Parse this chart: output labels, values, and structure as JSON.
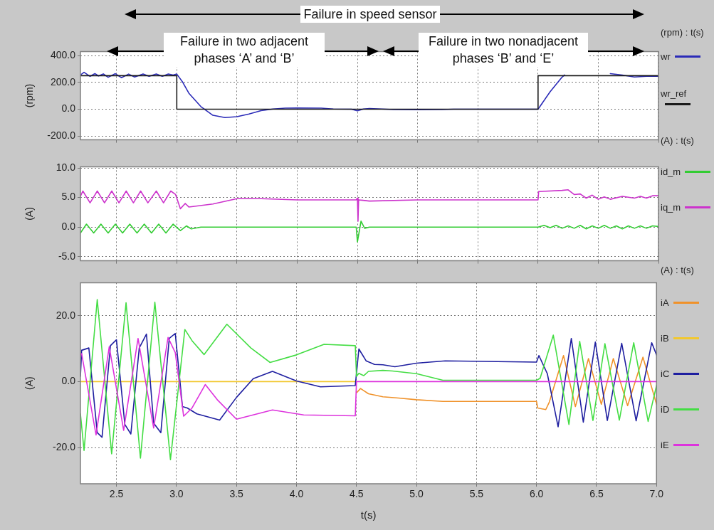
{
  "chart_data": [
    {
      "type": "line",
      "annotations": [
        "Failure in speed sensor",
        "Failure in two adjacent phases  ‘A’ and ‘B’",
        "Failure in two nonadjacent phases ‘B’ and ‘E’"
      ],
      "ylabel": "(rpm)",
      "legend": "right",
      "legend_title": "(rpm) : t(s)",
      "grid": true,
      "marker": "none",
      "tick_labels": "y",
      "xlim": [
        2.2,
        7.0
      ],
      "xticks": [
        2.5,
        3,
        3.5,
        4,
        4.5,
        5,
        5.5,
        6,
        6.5,
        7
      ],
      "ylim": [
        -228,
        430
      ],
      "yticks": [
        {
          "value": -200,
          "label": "-200.0"
        },
        {
          "value": 0,
          "label": "0.0"
        },
        {
          "value": 200,
          "label": "200.0"
        },
        {
          "value": 400,
          "label": "400.0"
        }
      ],
      "series": [
        {
          "name": "wr",
          "color": "#2b2bb8",
          "x": [
            2.2,
            2.23,
            2.28,
            2.32,
            2.35,
            2.39,
            2.43,
            2.49,
            2.54,
            2.6,
            2.65,
            2.72,
            2.77,
            2.83,
            2.88,
            2.93,
            2.97,
            3.0,
            3.05,
            3.1,
            3.2,
            3.3,
            3.4,
            3.5,
            3.6,
            3.7,
            3.8,
            3.9,
            4.0,
            4.2,
            4.3,
            4.45,
            4.5,
            4.55,
            4.6,
            4.7,
            4.8,
            5.0,
            5.2,
            5.3,
            6.0,
            6.1,
            6.2,
            6.22,
            6.4,
            6.6,
            6.7,
            6.8,
            6.9,
            7.0
          ],
          "values": [
            255,
            275,
            245,
            265,
            248,
            263,
            238,
            265,
            235,
            262,
            240,
            262,
            245,
            262,
            245,
            262,
            255,
            262,
            200,
            120,
            20,
            -45,
            -62,
            -55,
            -35,
            -10,
            2,
            8,
            10,
            8,
            2,
            0,
            -12,
            2,
            5,
            2,
            -2,
            -3,
            -2,
            0,
            0,
            130,
            240,
            255,
            null,
            265,
            255,
            240,
            245,
            245
          ]
        },
        {
          "name": "wr_ref",
          "color": "#1a1a1a",
          "x": [
            2.2,
            3.0,
            3.0,
            6.0,
            6.0,
            7.0
          ],
          "values": [
            250,
            250,
            0,
            0,
            250,
            250
          ]
        }
      ]
    },
    {
      "type": "line",
      "ylabel": "(A)",
      "legend": "right",
      "legend_title": "(A) : t(s)",
      "grid": true,
      "marker": "none",
      "tick_labels": "y",
      "xlim": [
        2.2,
        7.0
      ],
      "xticks": [
        2.5,
        3,
        3.5,
        4,
        4.5,
        5,
        5.5,
        6,
        6.5,
        7
      ],
      "ylim": [
        -5.7,
        10.2
      ],
      "yticks": [
        {
          "value": -5,
          "label": "-5.0"
        },
        {
          "value": 0,
          "label": "0.0"
        },
        {
          "value": 5,
          "label": "5.0"
        },
        {
          "value": 10,
          "label": "10.0"
        }
      ],
      "series": [
        {
          "name": "id_m",
          "color": "#33cc33",
          "x": [
            2.2,
            2.25,
            2.31,
            2.37,
            2.43,
            2.49,
            2.55,
            2.61,
            2.67,
            2.73,
            2.79,
            2.85,
            2.91,
            2.97,
            3.03,
            3.08,
            3.12,
            3.2,
            4.49,
            4.5,
            4.53,
            4.56,
            4.6,
            6.0,
            6.05,
            6.1,
            6.15,
            6.2,
            6.25,
            6.3,
            6.35,
            6.4,
            6.45,
            6.5,
            6.55,
            6.6,
            6.65,
            6.7,
            6.75,
            6.8,
            6.85,
            6.9,
            6.95,
            7.0
          ],
          "values": [
            -1.0,
            0.5,
            -1.0,
            0.5,
            -1.0,
            0.5,
            -1.0,
            0.5,
            -1.0,
            0.5,
            -1.0,
            0.5,
            -1.0,
            0.5,
            -0.6,
            0.2,
            -0.3,
            0,
            0,
            -2.5,
            1.0,
            -0.2,
            0,
            0,
            0.3,
            -0.1,
            0.3,
            -0.2,
            0.2,
            -0.2,
            0.3,
            -0.3,
            0.2,
            -0.2,
            0.3,
            -0.2,
            0.2,
            -0.3,
            0.2,
            -0.2,
            0.2,
            -0.2,
            0.2,
            0.1
          ]
        },
        {
          "name": "iq_m",
          "color": "#cc33cc",
          "x": [
            2.2,
            2.22,
            2.28,
            2.34,
            2.4,
            2.46,
            2.52,
            2.58,
            2.64,
            2.7,
            2.76,
            2.83,
            2.89,
            2.95,
            2.99,
            3.03,
            3.07,
            3.1,
            3.3,
            3.5,
            3.7,
            4.0,
            4.49,
            4.5,
            4.505,
            4.51,
            4.6,
            5.0,
            6.0,
            6.005,
            6.2,
            6.25,
            6.3,
            6.35,
            6.4,
            6.45,
            6.5,
            6.55,
            6.6,
            6.7,
            6.8,
            6.85,
            6.9,
            6.95,
            7.0
          ],
          "values": [
            5.2,
            6.1,
            4.1,
            6.1,
            4.1,
            6.1,
            4.1,
            6.1,
            4.1,
            6.1,
            4.1,
            6.1,
            4.1,
            6.1,
            5.5,
            3.1,
            4.0,
            3.4,
            3.9,
            4.8,
            4.8,
            4.6,
            4.6,
            4.9,
            1.0,
            4.6,
            4.4,
            4.6,
            4.6,
            6.0,
            6.2,
            6.3,
            5.5,
            5.6,
            4.9,
            5.4,
            4.7,
            5.1,
            4.7,
            5.2,
            4.9,
            5.2,
            4.9,
            5.3,
            5.3
          ]
        }
      ]
    },
    {
      "type": "line",
      "ylabel": "(A)",
      "xlabel": "t(s)",
      "legend": "right",
      "legend_title": "(A) : t(s)",
      "grid": true,
      "marker": "none",
      "xlim": [
        2.2,
        7.0
      ],
      "xticks": [
        2.5,
        {
          "value": 3,
          "label": "3.0"
        },
        3.5,
        {
          "value": 4,
          "label": "4.0"
        },
        4.5,
        {
          "value": 5,
          "label": "5.0"
        },
        5.5,
        {
          "value": 6,
          "label": "6.0"
        },
        6.5,
        {
          "value": 7,
          "label": "7.0"
        }
      ],
      "ylim": [
        -31,
        30
      ],
      "yticks": [
        {
          "value": -20,
          "label": "-20.0"
        },
        {
          "value": 0,
          "label": "0.0"
        },
        {
          "value": 20,
          "label": "20.0"
        }
      ],
      "series": [
        {
          "name": "iA",
          "color": "#f0922a",
          "x": [
            4.5,
            4.534,
            4.6,
            4.72,
            4.85,
            5.0,
            5.22,
            6.0,
            6.01,
            6.077,
            6.107,
            6.225,
            6.324,
            6.433,
            6.54,
            6.64,
            6.759,
            6.887,
            7.0
          ],
          "values": [
            -3.4,
            -2.1,
            -3.7,
            -4.6,
            -5.0,
            -5.5,
            -6.0,
            -6.0,
            -8.0,
            -8.5,
            -6.2,
            7.9,
            -7.6,
            7.0,
            -6.9,
            7.0,
            -7.3,
            7.4,
            -6.9
          ]
        },
        {
          "name": "iB",
          "color": "#f2c82e",
          "x": [
            2.2,
            4.5
          ],
          "values": [
            0,
            0
          ]
        },
        {
          "name": "iC",
          "color": "#1f1fa0",
          "x": [
            2.2,
            2.21,
            2.27,
            2.34,
            2.38,
            2.45,
            2.5,
            2.57,
            2.62,
            2.69,
            2.75,
            2.81,
            2.87,
            2.94,
            2.99,
            3.05,
            3.09,
            3.17,
            3.36,
            3.5,
            3.64,
            3.8,
            4.0,
            4.2,
            4.49,
            4.52,
            4.58,
            4.65,
            4.72,
            4.82,
            5.0,
            5.24,
            6.0,
            6.02,
            6.09,
            6.18,
            6.29,
            6.39,
            6.49,
            6.59,
            6.71,
            6.83,
            6.96,
            7.0
          ],
          "values": [
            1.6,
            9.5,
            10.2,
            -15.5,
            -16.9,
            10.9,
            12.7,
            -13.0,
            -15.9,
            10.2,
            14.4,
            -12.6,
            -15.5,
            13.1,
            14.6,
            -7.6,
            -8.0,
            -9.8,
            -11.7,
            -4.8,
            0.9,
            3.1,
            0.2,
            -1.6,
            -1.2,
            9.9,
            6.3,
            5.2,
            5.1,
            4.5,
            5.6,
            6.3,
            5.9,
            7.9,
            2.4,
            -13.7,
            13.1,
            -12.3,
            12.0,
            -11.8,
            11.6,
            -11.9,
            11.8,
            8.1
          ]
        },
        {
          "name": "iD",
          "color": "#44dd44",
          "x": [
            2.2,
            2.23,
            2.34,
            2.46,
            2.58,
            2.7,
            2.82,
            2.95,
            3.07,
            3.13,
            3.23,
            3.42,
            3.62,
            3.78,
            4.0,
            4.23,
            4.49,
            4.5,
            4.52,
            4.56,
            4.6,
            4.72,
            4.8,
            5.0,
            5.22,
            6.0,
            6.03,
            6.14,
            6.27,
            6.36,
            6.47,
            6.57,
            6.69,
            6.81,
            6.93,
            7.0
          ],
          "values": [
            -9.8,
            -20.9,
            24.9,
            -21.9,
            23.9,
            -23.2,
            24.1,
            -23.7,
            15.8,
            12.4,
            8.2,
            17.4,
            10.2,
            5.8,
            8.1,
            11.3,
            10.9,
            1.6,
            2.5,
            1.8,
            3.1,
            3.4,
            3.2,
            2.4,
            0.4,
            0.4,
            1.0,
            14.1,
            -13.0,
            12.2,
            -11.8,
            11.5,
            -11.7,
            11.8,
            -12.1,
            -1.2
          ]
        },
        {
          "name": "iE",
          "color": "#dd33dd",
          "x": [
            2.2,
            2.21,
            2.33,
            2.44,
            2.56,
            2.68,
            2.81,
            2.93,
            2.99,
            3.06,
            3.13,
            3.24,
            3.34,
            3.5,
            3.8,
            4.06,
            4.49,
            4.5,
            7.0
          ],
          "values": [
            8.1,
            8.5,
            -16.2,
            10.6,
            -14.8,
            13.1,
            -14.1,
            13.4,
            8.8,
            -10.5,
            -8.0,
            -0.9,
            -5.5,
            -11.4,
            -8.6,
            -10.1,
            -10.4,
            0,
            0
          ]
        }
      ]
    }
  ]
}
